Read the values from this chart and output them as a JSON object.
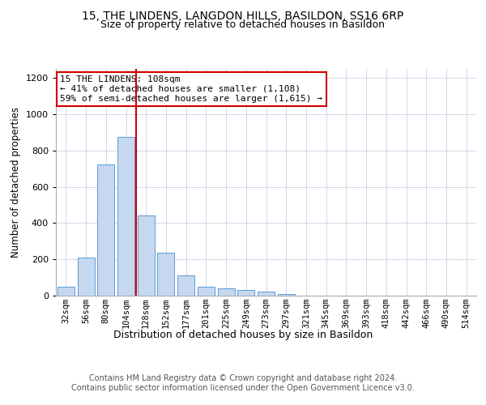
{
  "title_line1": "15, THE LINDENS, LANGDON HILLS, BASILDON, SS16 6RP",
  "title_line2": "Size of property relative to detached houses in Basildon",
  "xlabel": "Distribution of detached houses by size in Basildon",
  "ylabel": "Number of detached properties",
  "categories": [
    "32sqm",
    "56sqm",
    "80sqm",
    "104sqm",
    "128sqm",
    "152sqm",
    "177sqm",
    "201sqm",
    "225sqm",
    "249sqm",
    "273sqm",
    "297sqm",
    "321sqm",
    "345sqm",
    "369sqm",
    "393sqm",
    "418sqm",
    "442sqm",
    "466sqm",
    "490sqm",
    "514sqm"
  ],
  "values": [
    50,
    210,
    725,
    875,
    440,
    235,
    110,
    48,
    42,
    32,
    22,
    10,
    0,
    0,
    0,
    0,
    0,
    0,
    0,
    0,
    0
  ],
  "bar_color": "#c5d8f0",
  "bar_edge_color": "#5b9bd5",
  "vline_x": 3.5,
  "vline_color": "#cc0000",
  "annotation_text": "15 THE LINDENS: 108sqm\n← 41% of detached houses are smaller (1,108)\n59% of semi-detached houses are larger (1,615) →",
  "annotation_box_color": "#ffffff",
  "annotation_box_edge": "#cc0000",
  "ylim": [
    0,
    1250
  ],
  "yticks": [
    0,
    200,
    400,
    600,
    800,
    1000,
    1200
  ],
  "footer_line1": "Contains HM Land Registry data © Crown copyright and database right 2024.",
  "footer_line2": "Contains public sector information licensed under the Open Government Licence v3.0.",
  "bg_color": "#ffffff",
  "grid_color": "#d0d8e8",
  "title1_fontsize": 10,
  "title2_fontsize": 9,
  "xlabel_fontsize": 9,
  "ylabel_fontsize": 8.5,
  "footer_fontsize": 7,
  "tick_fontsize": 7.5,
  "ytick_fontsize": 8,
  "ann_fontsize": 8
}
